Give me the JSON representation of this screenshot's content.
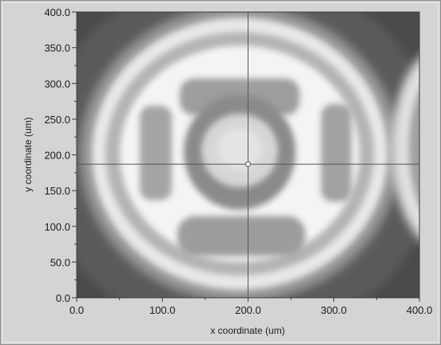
{
  "chart_data": {
    "type": "heatmap",
    "xlabel": "x coordinate  (um)",
    "ylabel": "y coordinate  (um)",
    "xlim": [
      0,
      400
    ],
    "ylim": [
      0,
      400
    ],
    "x_ticks": [
      "0.0",
      "100.0",
      "200.0",
      "300.0",
      "400.0"
    ],
    "y_ticks": [
      "0.0",
      "50.0",
      "100.0",
      "150.0",
      "200.0",
      "250.0",
      "300.0",
      "350.0",
      "400.0"
    ],
    "cursor": {
      "x": 200,
      "y": 187
    },
    "colormap": {
      "low": "#3c3c3c",
      "high": "#ffffff"
    }
  }
}
